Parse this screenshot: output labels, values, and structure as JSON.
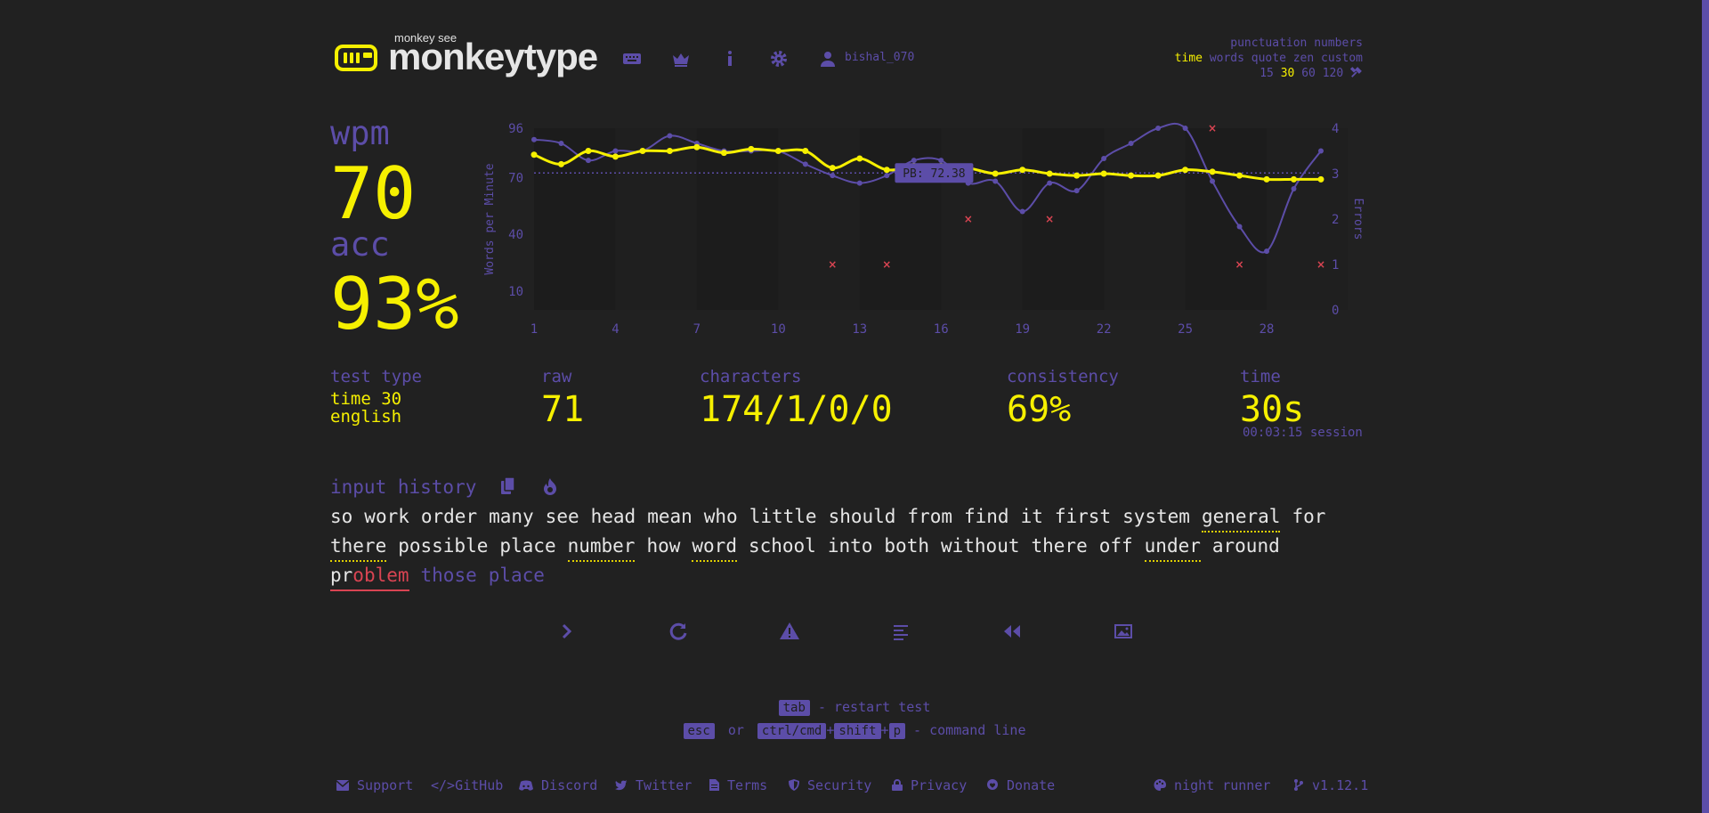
{
  "header": {
    "logo_sub": "monkey see",
    "logo": "monkeytype",
    "username": "bishal_070",
    "nav_icons": [
      "keyboard-icon",
      "crown-icon",
      "info-icon",
      "gear-icon",
      "user-icon"
    ]
  },
  "modes": {
    "row1": "punctuation numbers",
    "row2_active": "time",
    "row2_rest": "words quote zen custom",
    "times": [
      "15",
      "30",
      "60",
      "120"
    ],
    "active_time": "30"
  },
  "result": {
    "wpm_label": "wpm",
    "wpm": "70",
    "acc_label": "acc",
    "acc": "93%",
    "test_type_label": "test type",
    "test_type_1": "time 30",
    "test_type_2": "english",
    "raw_label": "raw",
    "raw": "71",
    "characters_label": "characters",
    "characters": "174/1/0/0",
    "consistency_label": "consistency",
    "consistency": "69%",
    "time_label": "time",
    "time": "30s",
    "session": "00:03:15 session"
  },
  "chart_data": {
    "type": "line",
    "ylabel": "Words per Minute",
    "y2label": "Errors",
    "x": [
      1,
      2,
      3,
      4,
      5,
      6,
      7,
      8,
      9,
      10,
      11,
      12,
      13,
      14,
      15,
      16,
      17,
      18,
      19,
      20,
      21,
      22,
      23,
      24,
      25,
      26,
      27,
      28,
      29,
      30
    ],
    "xticks": [
      "1",
      "4",
      "7",
      "10",
      "13",
      "16",
      "19",
      "22",
      "25",
      "28"
    ],
    "yticks": [
      "96",
      "70",
      "40",
      "10"
    ],
    "y2ticks": [
      "4",
      "3",
      "2",
      "1",
      "0"
    ],
    "ylim": [
      0,
      96
    ],
    "y2lim": [
      0,
      4
    ],
    "pb_label": "PB: 72.38",
    "pb_value": 72.38,
    "series": [
      {
        "name": "wpm",
        "color": "#f6f000",
        "values": [
          82,
          77,
          84,
          81,
          84,
          84,
          86,
          83,
          85,
          84,
          84,
          75,
          80,
          74,
          76,
          76,
          75,
          72,
          74,
          72,
          71,
          72,
          71,
          71,
          74,
          73,
          71,
          69,
          69,
          69
        ]
      },
      {
        "name": "raw",
        "color": "#5c4da8",
        "values": [
          90,
          88,
          79,
          84,
          84,
          92,
          88,
          84,
          84,
          84,
          77,
          71,
          67,
          71,
          79,
          79,
          67,
          68,
          52,
          67,
          63,
          80,
          88,
          96,
          96,
          68,
          44,
          31,
          64,
          84
        ]
      }
    ],
    "errors": {
      "x": [
        12,
        14,
        17,
        20,
        26,
        27,
        30
      ],
      "values": [
        1,
        1,
        2,
        2,
        4,
        1,
        1
      ]
    }
  },
  "history": {
    "title": "input history",
    "icons": [
      "copy-icon",
      "fire-icon"
    ],
    "words": [
      {
        "t": "so"
      },
      {
        "t": "work"
      },
      {
        "t": "order"
      },
      {
        "t": "many"
      },
      {
        "t": "see"
      },
      {
        "t": "head"
      },
      {
        "t": "mean"
      },
      {
        "t": "who"
      },
      {
        "t": "little"
      },
      {
        "t": "should"
      },
      {
        "t": "from"
      },
      {
        "t": "find"
      },
      {
        "t": "it"
      },
      {
        "t": "first"
      },
      {
        "t": "system"
      },
      {
        "t": "general",
        "err": true
      },
      {
        "t": "for"
      },
      {
        "t": "there",
        "err": true
      },
      {
        "t": "possible"
      },
      {
        "t": "place"
      },
      {
        "t": "number",
        "err": true
      },
      {
        "t": "how"
      },
      {
        "t": "word",
        "err": true
      },
      {
        "t": "school"
      },
      {
        "t": "into"
      },
      {
        "t": "both"
      },
      {
        "t": "without"
      },
      {
        "t": "there"
      },
      {
        "t": "off"
      },
      {
        "t": "under",
        "err": true
      },
      {
        "t": "around"
      }
    ],
    "partial_typed": "pr",
    "partial_red": "oblem",
    "untyped": [
      "those",
      "place"
    ]
  },
  "actions": [
    "next-test-icon",
    "restart-icon",
    "report-icon",
    "word-list-icon",
    "replay-icon",
    "screenshot-icon"
  ],
  "hints": {
    "tab": "tab",
    "restart": "- restart test",
    "esc": "esc",
    "or": "or",
    "ctrl": "ctrl/cmd",
    "plus": "+",
    "shift": "shift",
    "p": "p",
    "command": "- command line"
  },
  "footer": {
    "links": [
      "Support",
      "GitHub",
      "Discord",
      "Twitter",
      "Terms",
      "Security",
      "Privacy",
      "Donate"
    ],
    "theme": "night runner",
    "version": "v1.12.1"
  },
  "colors": {
    "bg": "#212121",
    "main": "#f6f000",
    "sub": "#5c4da8",
    "text": "#e6e6e6",
    "error": "#d94452"
  }
}
